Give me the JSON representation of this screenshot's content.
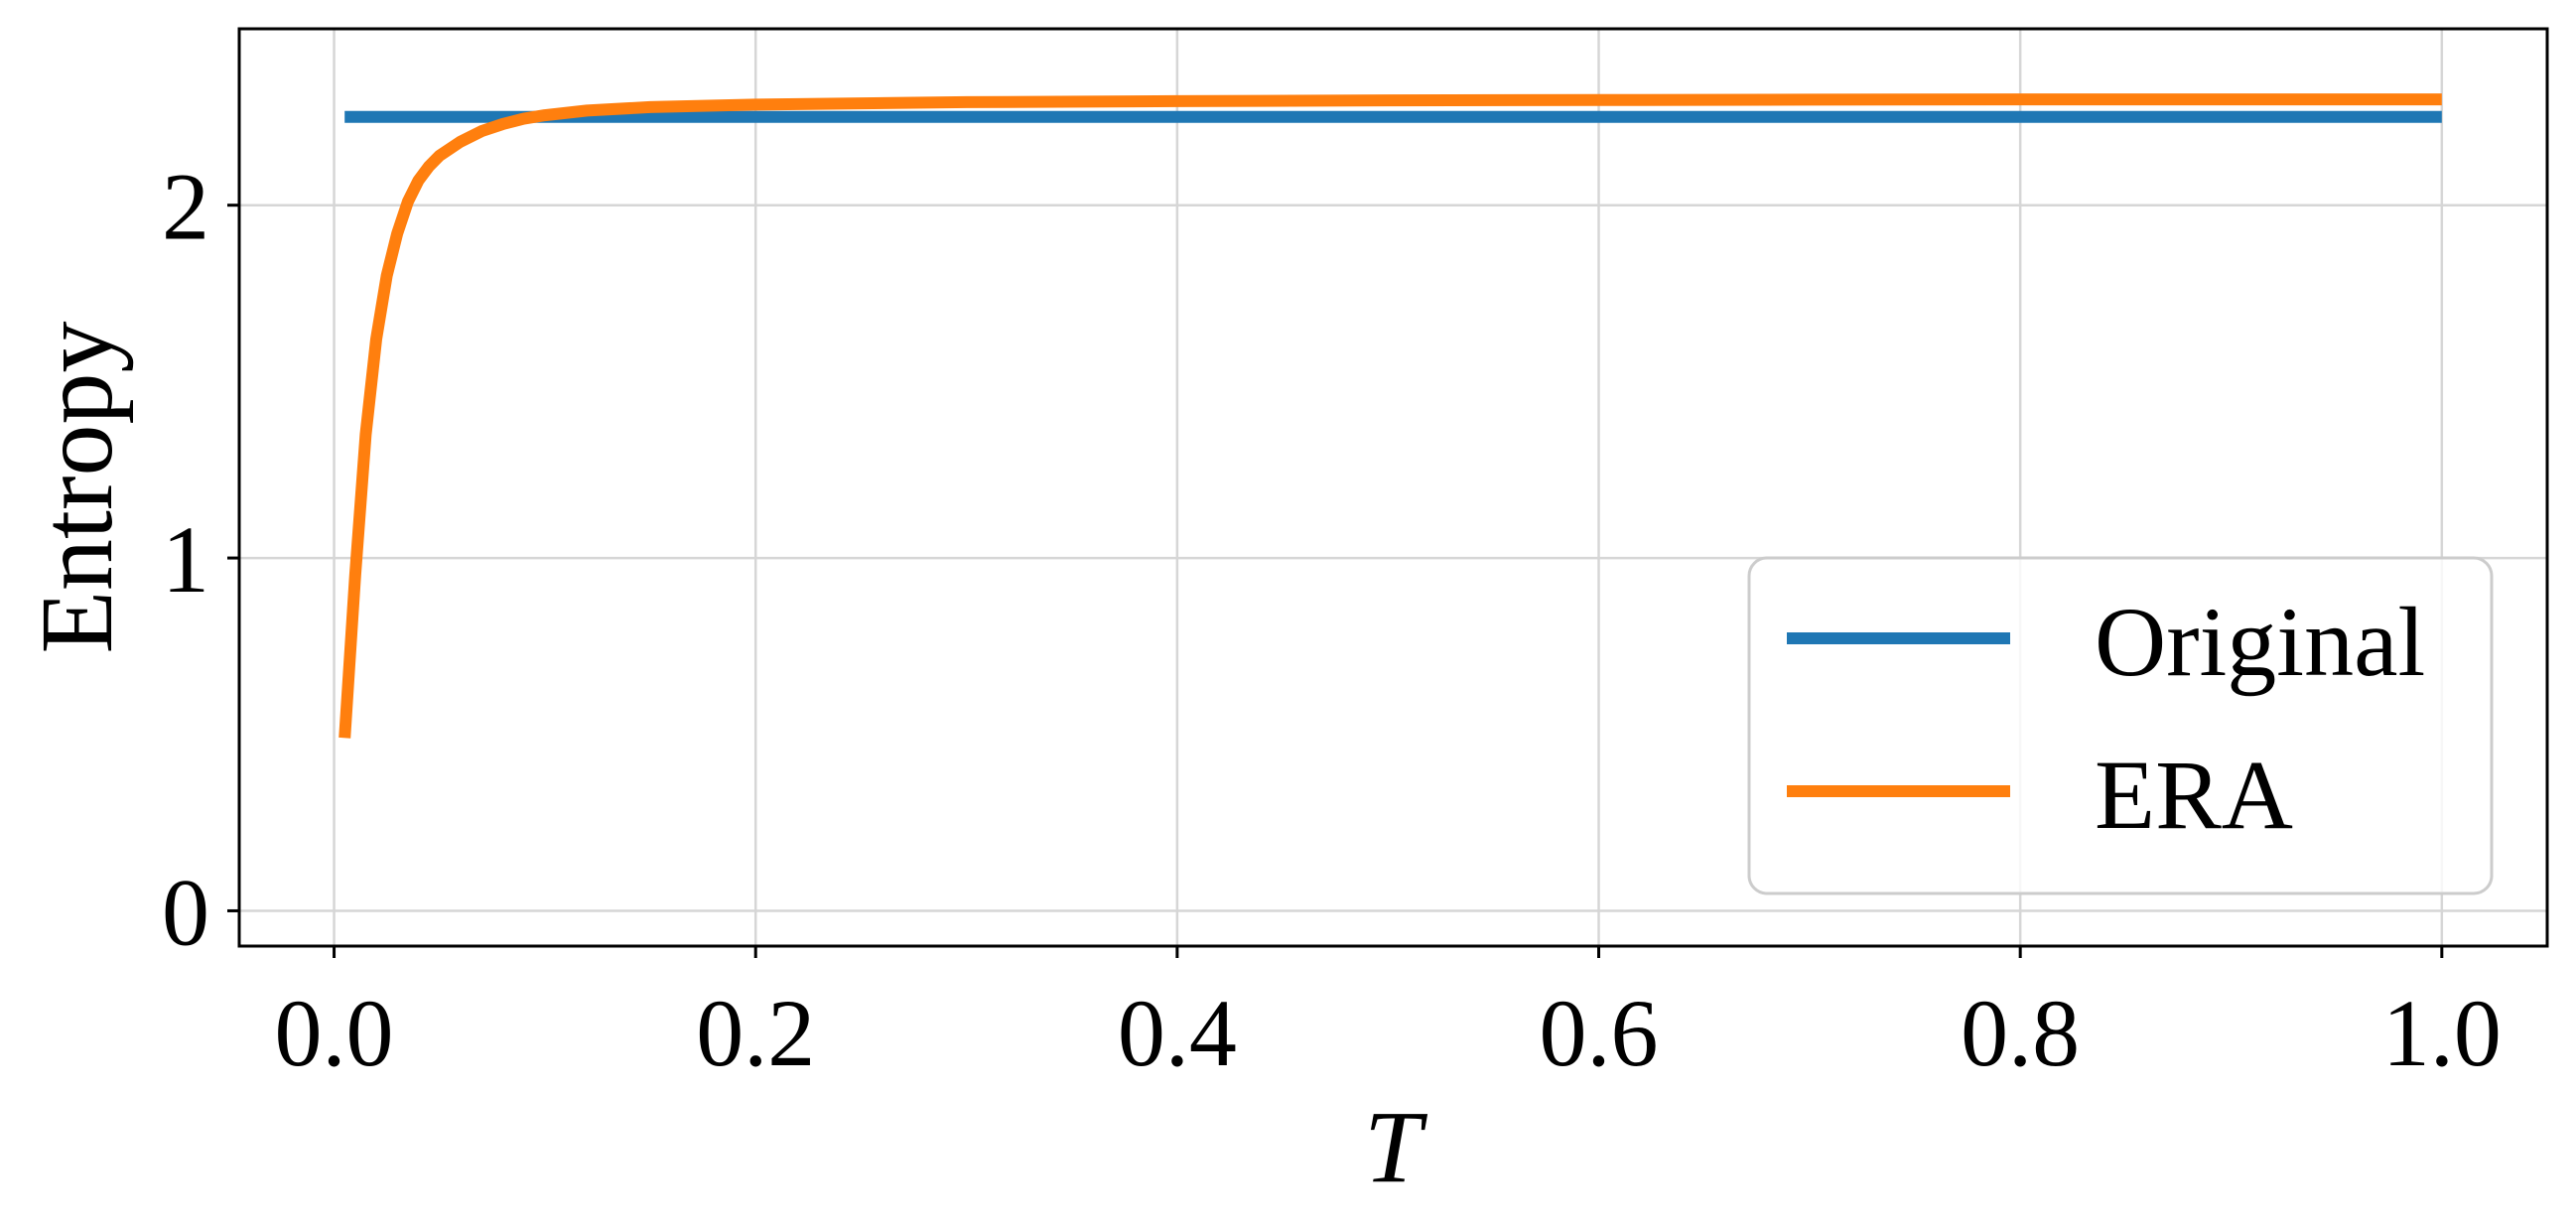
{
  "chart_data": {
    "type": "line",
    "title": "",
    "xlabel": "T",
    "ylabel": "Entropy",
    "xlim": [
      -0.045,
      1.05
    ],
    "ylim": [
      -0.1,
      2.5
    ],
    "xticks": [
      0.0,
      0.2,
      0.4,
      0.6,
      0.8,
      1.0
    ],
    "xtick_labels": [
      "0.0",
      "0.2",
      "0.4",
      "0.6",
      "0.8",
      "1.0"
    ],
    "yticks": [
      0,
      1,
      2
    ],
    "ytick_labels": [
      "0",
      "1",
      "2"
    ],
    "grid": true,
    "legend_position": "lower-right",
    "series": [
      {
        "name": "Original",
        "color": "#1f77b4",
        "x": [
          0.005,
          1.0
        ],
        "y": [
          2.25,
          2.25
        ]
      },
      {
        "name": "ERA",
        "color": "#ff7f0e",
        "x": [
          0.005,
          0.01,
          0.015,
          0.02,
          0.025,
          0.03,
          0.035,
          0.04,
          0.045,
          0.05,
          0.06,
          0.07,
          0.08,
          0.09,
          0.1,
          0.12,
          0.15,
          0.2,
          0.3,
          0.4,
          0.5,
          0.6,
          0.7,
          0.8,
          0.9,
          1.0
        ],
        "y": [
          0.49,
          0.95,
          1.35,
          1.62,
          1.8,
          1.92,
          2.01,
          2.07,
          2.11,
          2.14,
          2.18,
          2.21,
          2.23,
          2.245,
          2.255,
          2.268,
          2.278,
          2.285,
          2.292,
          2.295,
          2.297,
          2.298,
          2.299,
          2.3,
          2.3,
          2.3
        ]
      }
    ]
  }
}
